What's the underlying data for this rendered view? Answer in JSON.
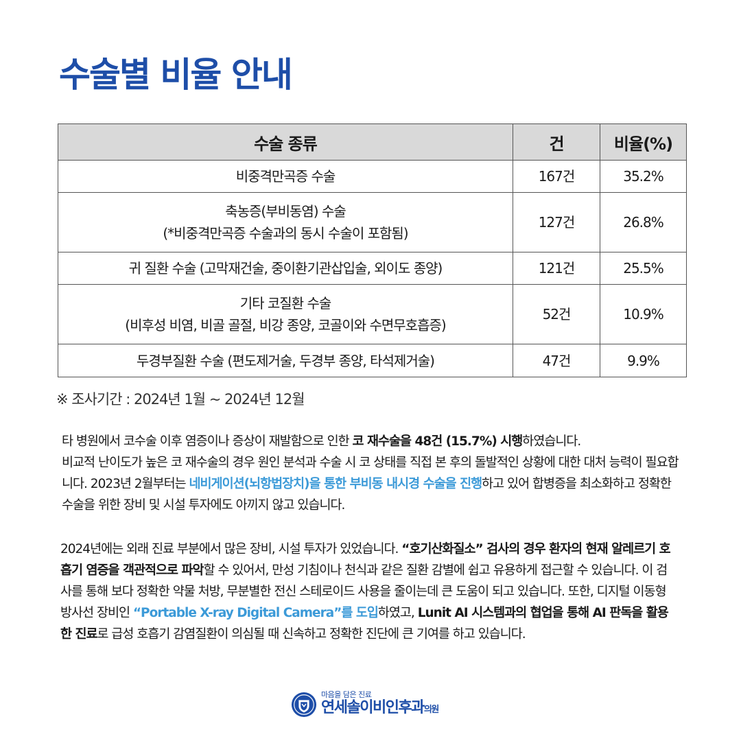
{
  "title": "수술별 비율 안내",
  "table": {
    "headers": [
      "수술 종류",
      "건",
      "비율(%)"
    ],
    "rows": [
      {
        "name": [
          "비중격만곡증 수술"
        ],
        "count": "167건",
        "ratio": "35.2%"
      },
      {
        "name": [
          "축농증(부비동염) 수술",
          "(*비중격만곡증 수술과의 동시 수술이 포함됨)"
        ],
        "count": "127건",
        "ratio": "26.8%"
      },
      {
        "name": [
          "귀 질환 수술 (고막재건술, 중이환기관삽입술, 외이도 종양)"
        ],
        "count": "121건",
        "ratio": "25.5%"
      },
      {
        "name": [
          "기타 코질환 수술",
          "(비후성 비염, 비골 골절, 비강 종양, 코골이와 수면무호흡증)"
        ],
        "count": "52건",
        "ratio": "10.9%"
      },
      {
        "name": [
          "두경부질환 수술 (편도제거술, 두경부 종양, 타석제거술)"
        ],
        "count": "47건",
        "ratio": "9.9%"
      }
    ]
  },
  "survey_period": "※ 조사기간 : 2024년 1월 ~ 2024년 12월",
  "para1": {
    "s1": "타 병원에서 코수술 이후 염증이나 증상이 재발함으로 인한 ",
    "s2": "코 재수술을 48건 (15.7%) 시행",
    "s3": "하였습니다.",
    "s4": "비교적 난이도가 높은 코 재수술의 경우 원인 분석과 수술 시 코 상태를 직접 본 후의 돌발적인 상황에 대한 대처 능력이 필요합니다.  2023년 2월부터는 ",
    "s5": "네비게이션(뇌항법장치)을 통한 부비동 내시경 수술을 진행",
    "s6": "하고 있어 합병증을 최소화하고 정확한 수술을 위한 장비 및 시설 투자에도 아끼지 않고 있습니다."
  },
  "para2": {
    "s1": "2024년에는 외래 진료 부분에서 많은 장비, 시설 투자가 있었습니다. ",
    "s2": "“호기산화질소” 검사의 경우 환자의 현재 알레르기 호흡기 염증을 객관적으로 파악",
    "s3": "할 수 있어서, 만성 기침이나 천식과 같은 질환 감별에 쉽고 유용하게 접근할 수 있습니다. 이 검사를 통해 보다 정확한 약물 처방, 무분별한 전신 스테로이드 사용을 줄이는데 큰 도움이 되고 있습니다. 또한, 디지털 이동형 방사선 장비인 ",
    "s4": "“Portable X-ray Digital Camera”를 도입",
    "s5": "하였고, ",
    "s6": "Lunit AI 시스템과의 협업을  통해 AI 판독을 활용한 진료",
    "s7": "로 급성 호흡기 감염질환이 의심될 때 신속하고 정확한 진단에 큰 기여를 하고 있습니다."
  },
  "footer": {
    "tagline": "마음을 담은 진료",
    "name": "연세솔이비인후과",
    "name_suffix": "의원"
  },
  "colors": {
    "brand_blue": "#1e4ea8",
    "highlight_blue": "#3c9ad8",
    "header_gray": "#d9d9d9"
  },
  "icons": {
    "logo": "hospital-emblem-icon"
  }
}
